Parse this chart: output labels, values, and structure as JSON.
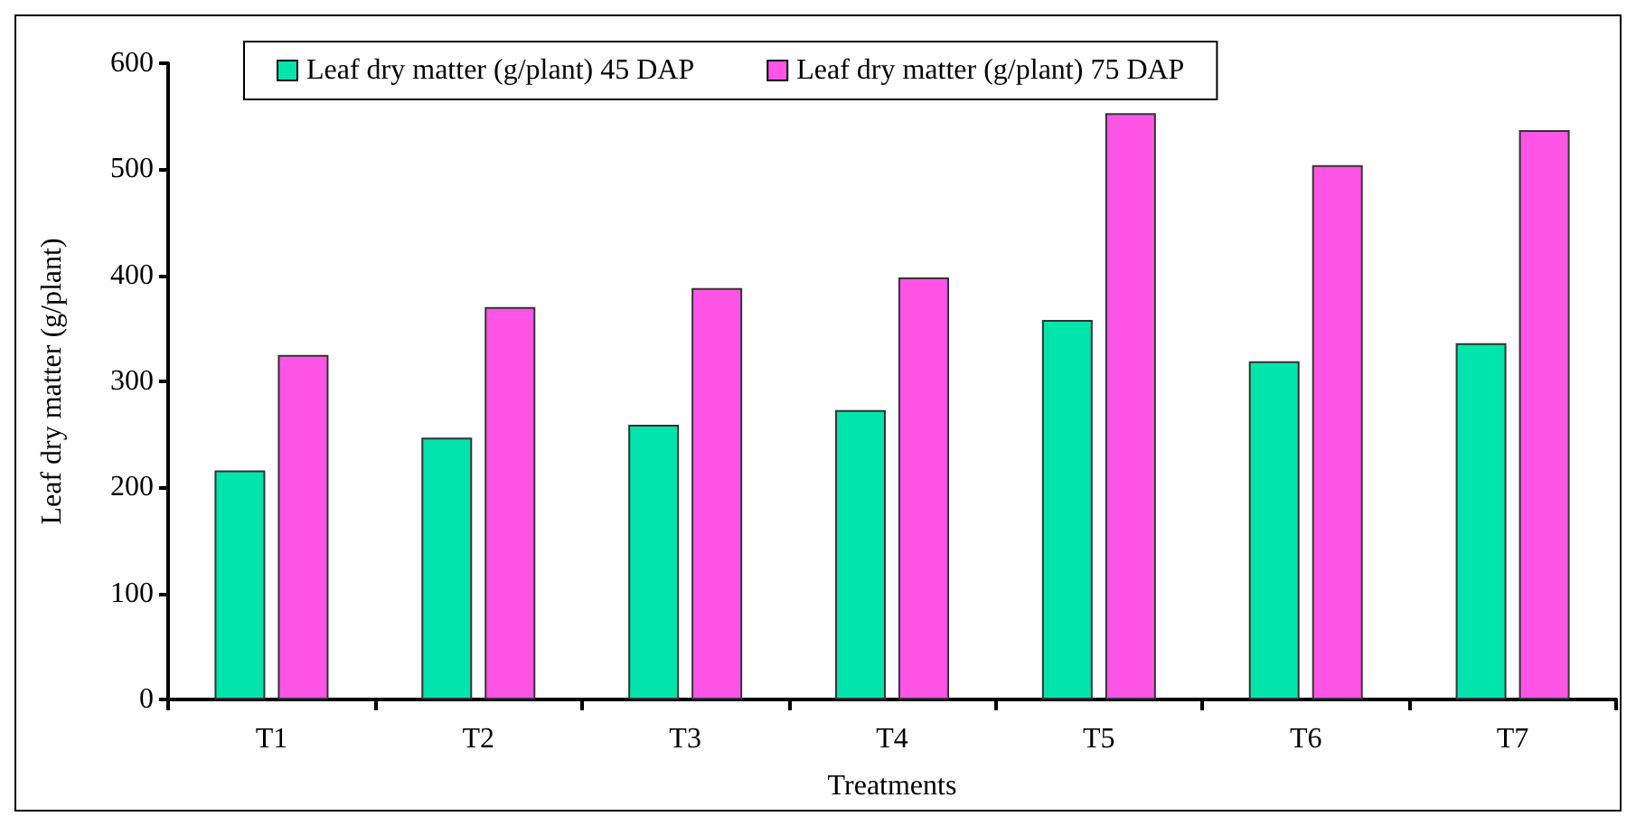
{
  "chart_data": {
    "type": "bar",
    "xlabel": "Treatments",
    "ylabel": "Leaf dry matter (g/plant)",
    "categories": [
      "T1",
      "T2",
      "T3",
      "T4",
      "T5",
      "T6",
      "T7"
    ],
    "series": [
      {
        "name": "Leaf dry matter (g/plant) 45 DAP",
        "color": "#00e5ac",
        "values": [
          216,
          247,
          259,
          273,
          358,
          319,
          336
        ]
      },
      {
        "name": "Leaf dry matter (g/plant) 75 DAP",
        "color": "#ff55e6",
        "values": [
          325,
          370,
          388,
          398,
          553,
          504,
          537
        ]
      }
    ],
    "ylim": [
      0,
      600
    ],
    "yticks": [
      0,
      100,
      200,
      300,
      400,
      500,
      600
    ],
    "grid": false,
    "legend": "top"
  }
}
